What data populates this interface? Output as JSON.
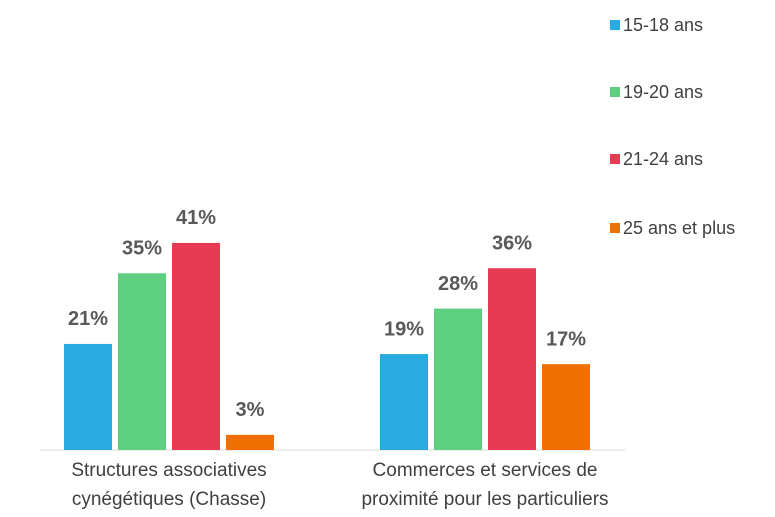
{
  "chart_data": {
    "type": "bar",
    "categories": [
      "Structures associatives cynégétiques (Chasse)",
      "Commerces et services de proximité pour les particuliers"
    ],
    "series": [
      {
        "name": "15-18 ans",
        "color": "#29abe2",
        "values": [
          21,
          19
        ],
        "value_labels": [
          "21%",
          "19%"
        ]
      },
      {
        "name": "19-20 ans",
        "color": "#5ecf7e",
        "values": [
          35,
          28
        ],
        "value_labels": [
          "35%",
          "28%"
        ]
      },
      {
        "name": "21-24 ans",
        "color": "#e83a52",
        "values": [
          41,
          36
        ],
        "value_labels": [
          "41%",
          "36%"
        ]
      },
      {
        "name": "25 ans et plus",
        "color": "#ef7000",
        "values": [
          3,
          17
        ],
        "value_labels": [
          "3%",
          "17%"
        ]
      }
    ],
    "legend": "right"
  }
}
